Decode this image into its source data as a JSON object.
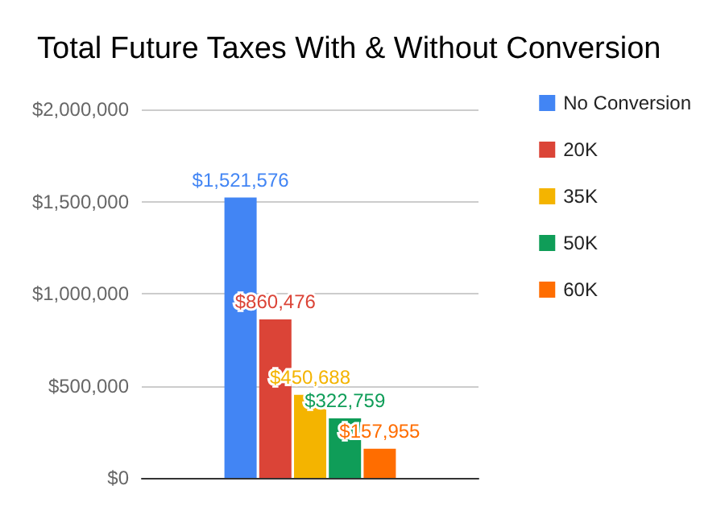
{
  "chart_data": {
    "type": "bar",
    "title": "Total Future Taxes With & Without Conversion",
    "categories": [
      null
    ],
    "series": [
      {
        "name": "No Conversion",
        "color": "#4285f4",
        "values": [
          1521576
        ],
        "value_labels": [
          "$1,521,576"
        ]
      },
      {
        "name": "20K",
        "color": "#db4437",
        "values": [
          860476
        ],
        "value_labels": [
          "$860,476"
        ]
      },
      {
        "name": "35K",
        "color": "#f4b400",
        "values": [
          450688
        ],
        "value_labels": [
          "$450,688"
        ]
      },
      {
        "name": "50K",
        "color": "#0f9d58",
        "values": [
          322759
        ],
        "value_labels": [
          "$322,759"
        ]
      },
      {
        "name": "60K",
        "color": "#ff6d00",
        "values": [
          157955
        ],
        "value_labels": [
          "$157,955"
        ]
      }
    ],
    "ylim": [
      0,
      2000000
    ],
    "yticks": [
      {
        "value": 0,
        "label": "$0"
      },
      {
        "value": 500000,
        "label": "$500,000"
      },
      {
        "value": 1000000,
        "label": "$1,000,000"
      },
      {
        "value": 1500000,
        "label": "$1,500,000"
      },
      {
        "value": 2000000,
        "label": "$2,000,000"
      }
    ],
    "grid": "y",
    "legend": "right"
  }
}
